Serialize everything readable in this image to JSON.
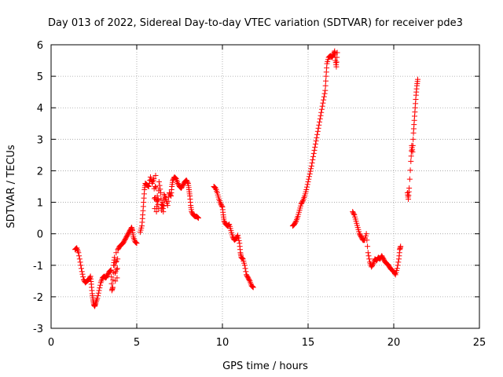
{
  "chart_data": {
    "type": "scatter",
    "title": "Day 013 of 2022, Sidereal Day-to-day VTEC variation (SDTVAR) for receiver pde3",
    "xlabel": "GPS time / hours",
    "ylabel": "SDTVAR / TECUs",
    "xlim": [
      0,
      25
    ],
    "ylim": [
      -3,
      6
    ],
    "xticks": [
      0,
      5,
      10,
      15,
      20,
      25
    ],
    "yticks": [
      -3,
      -2,
      -1,
      0,
      1,
      2,
      3,
      4,
      5,
      6
    ],
    "grid": true,
    "marker": "+",
    "colors": {
      "series": "#ff0000",
      "grid": "#a0a0a0",
      "axis": "#000000"
    },
    "series": [
      {
        "name": "pde3",
        "segments": [
          [
            [
              1.4,
              -0.5
            ],
            [
              1.5,
              -0.45
            ],
            [
              1.6,
              -0.6
            ],
            [
              1.7,
              -0.9
            ],
            [
              1.8,
              -1.2
            ],
            [
              1.9,
              -1.45
            ],
            [
              2.0,
              -1.55
            ],
            [
              2.1,
              -1.5
            ],
            [
              2.2,
              -1.45
            ],
            [
              2.3,
              -1.35
            ],
            [
              2.35,
              -1.6
            ],
            [
              2.4,
              -1.9
            ],
            [
              2.45,
              -2.1
            ],
            [
              2.5,
              -2.25
            ],
            [
              2.55,
              -2.3
            ],
            [
              2.6,
              -2.2
            ],
            [
              2.7,
              -2.05
            ],
            [
              2.8,
              -1.8
            ],
            [
              2.9,
              -1.55
            ],
            [
              3.0,
              -1.4
            ],
            [
              3.1,
              -1.35
            ],
            [
              3.2,
              -1.4
            ],
            [
              3.3,
              -1.3
            ],
            [
              3.4,
              -1.2
            ],
            [
              3.5,
              -1.15
            ],
            [
              3.55,
              -1.8
            ],
            [
              3.6,
              -1.7
            ],
            [
              3.65,
              -1.0
            ],
            [
              3.7,
              -0.75
            ],
            [
              3.75,
              -1.5
            ],
            [
              3.8,
              -0.6
            ],
            [
              3.85,
              -1.4
            ],
            [
              3.9,
              -0.5
            ],
            [
              4.0,
              -0.4
            ],
            [
              4.1,
              -0.35
            ],
            [
              4.2,
              -0.3
            ],
            [
              4.3,
              -0.2
            ],
            [
              4.4,
              -0.1
            ],
            [
              4.5,
              0.0
            ],
            [
              4.6,
              0.1
            ],
            [
              4.7,
              0.2
            ],
            [
              4.75,
              0.1
            ],
            [
              4.8,
              -0.1
            ],
            [
              4.9,
              -0.25
            ],
            [
              5.0,
              -0.3
            ]
          ],
          [
            [
              5.2,
              0.05
            ],
            [
              5.3,
              0.25
            ],
            [
              5.35,
              0.6
            ],
            [
              5.4,
              1.0
            ],
            [
              5.45,
              1.4
            ],
            [
              5.5,
              1.6
            ],
            [
              5.6,
              1.55
            ],
            [
              5.7,
              1.5
            ],
            [
              5.8,
              1.8
            ],
            [
              5.9,
              1.6
            ],
            [
              6.0,
              1.75
            ],
            [
              6.05,
              0.8
            ],
            [
              6.1,
              1.85
            ],
            [
              6.15,
              0.7
            ],
            [
              6.2,
              1.2
            ],
            [
              6.25,
              0.8
            ],
            [
              6.3,
              1.65
            ],
            [
              6.4,
              1.3
            ],
            [
              6.45,
              0.75
            ],
            [
              6.5,
              1.0
            ],
            [
              6.55,
              0.7
            ],
            [
              6.6,
              1.25
            ],
            [
              6.7,
              1.1
            ],
            [
              6.8,
              0.9
            ],
            [
              6.9,
              1.3
            ],
            [
              7.0,
              1.2
            ],
            [
              7.05,
              1.5
            ],
            [
              7.1,
              1.7
            ],
            [
              7.2,
              1.8
            ],
            [
              7.3,
              1.75
            ],
            [
              7.4,
              1.6
            ],
            [
              7.5,
              1.5
            ],
            [
              7.6,
              1.45
            ],
            [
              7.7,
              1.55
            ],
            [
              7.8,
              1.65
            ],
            [
              7.9,
              1.7
            ],
            [
              8.0,
              1.6
            ],
            [
              8.05,
              1.4
            ],
            [
              8.1,
              1.2
            ],
            [
              8.15,
              0.9
            ],
            [
              8.2,
              0.7
            ],
            [
              8.3,
              0.6
            ],
            [
              8.4,
              0.55
            ],
            [
              8.5,
              0.55
            ],
            [
              8.6,
              0.5
            ]
          ],
          [
            [
              9.5,
              1.5
            ],
            [
              9.6,
              1.45
            ],
            [
              9.7,
              1.3
            ],
            [
              9.8,
              1.1
            ],
            [
              9.9,
              0.95
            ],
            [
              10.0,
              0.85
            ],
            [
              10.05,
              0.6
            ],
            [
              10.1,
              0.4
            ],
            [
              10.2,
              0.3
            ],
            [
              10.3,
              0.25
            ],
            [
              10.4,
              0.3
            ],
            [
              10.5,
              0.1
            ],
            [
              10.6,
              -0.1
            ],
            [
              10.7,
              -0.2
            ],
            [
              10.8,
              -0.15
            ],
            [
              10.9,
              -0.05
            ],
            [
              11.0,
              -0.3
            ],
            [
              11.05,
              -0.6
            ],
            [
              11.1,
              -0.75
            ],
            [
              11.2,
              -0.8
            ],
            [
              11.3,
              -1.0
            ],
            [
              11.4,
              -1.3
            ],
            [
              11.5,
              -1.4
            ],
            [
              11.6,
              -1.5
            ],
            [
              11.7,
              -1.65
            ],
            [
              11.8,
              -1.7
            ]
          ],
          [
            [
              14.1,
              0.25
            ],
            [
              14.2,
              0.3
            ],
            [
              14.3,
              0.4
            ],
            [
              14.4,
              0.55
            ],
            [
              14.5,
              0.75
            ],
            [
              14.6,
              0.95
            ],
            [
              14.7,
              1.05
            ],
            [
              14.8,
              1.2
            ],
            [
              14.9,
              1.4
            ],
            [
              15.0,
              1.65
            ],
            [
              15.1,
              1.9
            ],
            [
              15.2,
              2.15
            ],
            [
              15.3,
              2.45
            ],
            [
              15.4,
              2.75
            ],
            [
              15.5,
              3.05
            ],
            [
              15.6,
              3.35
            ],
            [
              15.7,
              3.65
            ],
            [
              15.8,
              3.95
            ],
            [
              15.9,
              4.25
            ],
            [
              16.0,
              4.55
            ],
            [
              16.05,
              5.0
            ],
            [
              16.1,
              5.4
            ],
            [
              16.2,
              5.6
            ],
            [
              16.3,
              5.65
            ],
            [
              16.4,
              5.6
            ],
            [
              16.5,
              5.7
            ],
            [
              16.55,
              5.8
            ],
            [
              16.6,
              5.5
            ],
            [
              16.65,
              5.3
            ],
            [
              16.7,
              5.75
            ]
          ],
          [
            [
              17.6,
              0.7
            ],
            [
              17.7,
              0.6
            ],
            [
              17.8,
              0.4
            ],
            [
              17.9,
              0.2
            ],
            [
              18.0,
              0.0
            ],
            [
              18.1,
              -0.1
            ],
            [
              18.2,
              -0.2
            ],
            [
              18.3,
              -0.2
            ],
            [
              18.4,
              0.0
            ],
            [
              18.5,
              -0.6
            ],
            [
              18.6,
              -0.9
            ],
            [
              18.7,
              -1.05
            ],
            [
              18.8,
              -0.95
            ],
            [
              18.9,
              -0.8
            ],
            [
              19.0,
              -0.85
            ],
            [
              19.1,
              -0.75
            ],
            [
              19.2,
              -0.8
            ],
            [
              19.3,
              -0.7
            ],
            [
              19.4,
              -0.8
            ],
            [
              19.5,
              -0.9
            ],
            [
              19.6,
              -0.95
            ],
            [
              19.7,
              -1.0
            ],
            [
              19.8,
              -1.1
            ],
            [
              19.9,
              -1.15
            ],
            [
              20.0,
              -1.2
            ],
            [
              20.1,
              -1.3
            ],
            [
              20.2,
              -1.1
            ],
            [
              20.3,
              -0.8
            ],
            [
              20.35,
              -0.5
            ],
            [
              20.4,
              -0.4
            ]
          ],
          [
            [
              20.8,
              1.3
            ],
            [
              20.85,
              1.1
            ],
            [
              20.9,
              1.45
            ],
            [
              21.0,
              2.3
            ],
            [
              21.05,
              2.8
            ],
            [
              21.1,
              2.6
            ],
            [
              21.15,
              3.2
            ],
            [
              21.2,
              3.6
            ],
            [
              21.25,
              4.0
            ],
            [
              21.3,
              4.4
            ],
            [
              21.35,
              4.7
            ],
            [
              21.4,
              4.9
            ]
          ]
        ]
      }
    ]
  }
}
